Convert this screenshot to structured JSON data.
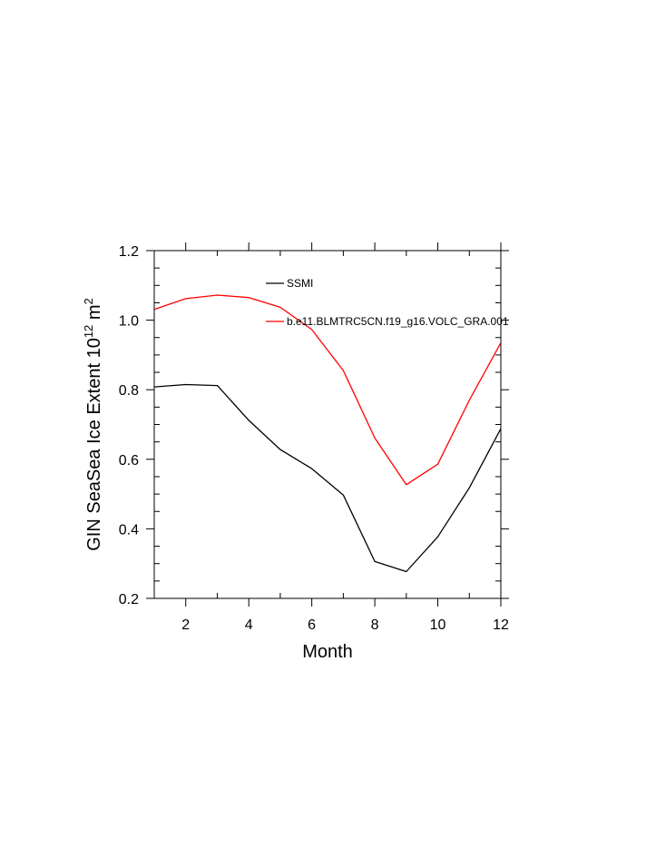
{
  "chart_data": {
    "type": "line",
    "xlabel": "Month",
    "ylabel_main": "GIN SeaSea Ice Extent 10",
    "ylabel_exp": "12",
    "ylabel_unit": " m",
    "ylabel_unit_exp": "2",
    "xlim": [
      1,
      12
    ],
    "ylim": [
      0.2,
      1.2
    ],
    "x_ticks": [
      2,
      4,
      6,
      8,
      10,
      12
    ],
    "x_tick_labels": [
      "2",
      "4",
      "6",
      "8",
      "10",
      "12"
    ],
    "y_ticks": [
      0.2,
      0.4,
      0.6,
      0.8,
      1.0,
      1.2
    ],
    "y_tick_labels": [
      "0.2",
      "0.4",
      "0.6",
      "0.8",
      "1.0",
      "1.2"
    ],
    "legend_position": "top-right inside",
    "grid": false,
    "x": [
      1,
      2,
      3,
      4,
      5,
      6,
      7,
      8,
      9,
      10,
      11,
      12
    ],
    "series": [
      {
        "name": "SSMI",
        "color": "#000000",
        "values": [
          0.808,
          0.815,
          0.812,
          0.712,
          0.628,
          0.573,
          0.497,
          0.306,
          0.277,
          0.377,
          0.518,
          0.688
        ]
      },
      {
        "name": "b.e11.BLMTRC5CN.f19_g16.VOLC_GRA.001",
        "color": "#ff0000",
        "values": [
          1.031,
          1.062,
          1.072,
          1.065,
          1.037,
          0.973,
          0.855,
          0.661,
          0.527,
          0.586,
          0.77,
          0.935
        ]
      }
    ]
  }
}
